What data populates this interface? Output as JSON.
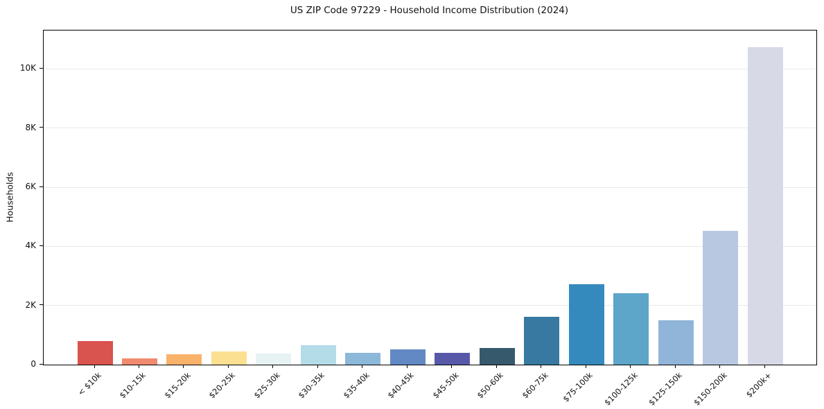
{
  "chart_data": {
    "type": "bar",
    "title": "US ZIP Code 97229 - Household Income Distribution (2024)",
    "xlabel": "",
    "ylabel": "Households",
    "categories": [
      "< $10k",
      "$10-15k",
      "$15-20k",
      "$20-25k",
      "$25-30k",
      "$30-35k",
      "$35-40k",
      "$40-45k",
      "$45-50k",
      "$50-60k",
      "$60-75k",
      "$75-100k",
      "$100-125k",
      "$125-150k",
      "$150-200k",
      "$200k+"
    ],
    "values": [
      790,
      210,
      350,
      450,
      375,
      660,
      390,
      520,
      390,
      570,
      1630,
      2720,
      2410,
      1490,
      4530,
      10740
    ],
    "bar_colors": [
      "#d9534f",
      "#f08a6e",
      "#f9b269",
      "#fce092",
      "#e7f2f3",
      "#b4dce8",
      "#8cb8da",
      "#6289c3",
      "#5759a8",
      "#36596c",
      "#3779a1",
      "#358abd",
      "#5da6c9",
      "#90b5d9",
      "#b9c8e1",
      "#d7dae6"
    ],
    "ylim": [
      0,
      11300
    ],
    "yticks": {
      "values": [
        0,
        2000,
        4000,
        6000,
        8000,
        10000
      ],
      "labels": [
        "0",
        "2K",
        "4K",
        "6K",
        "8K",
        "10K"
      ]
    },
    "grid": "horizontal",
    "gridline_color": "#e9e9e9",
    "legend": "none",
    "xtick_rotation": 45,
    "background_color": "#ffffff",
    "spine_color": "#000000"
  }
}
